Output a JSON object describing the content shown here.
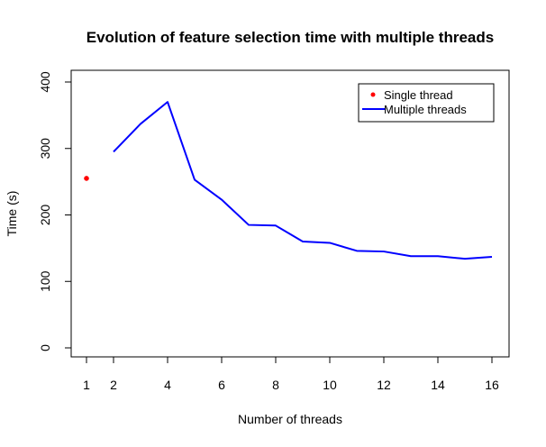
{
  "chart_data": {
    "type": "line",
    "title": "Evolution of feature selection time with multiple threads",
    "xlabel": "Number of threads",
    "ylabel": "Time (s)",
    "xlim": [
      1,
      16
    ],
    "ylim": [
      0,
      400
    ],
    "x_ticks": [
      1,
      2,
      4,
      6,
      8,
      10,
      12,
      14,
      16
    ],
    "y_ticks": [
      0,
      100,
      200,
      300,
      400
    ],
    "grid": false,
    "legend_position": "top-right",
    "series": [
      {
        "name": "Single thread",
        "kind": "points",
        "color": "#ff0000",
        "x": [
          1
        ],
        "y": [
          255
        ]
      },
      {
        "name": "Multiple threads",
        "kind": "line",
        "color": "#0000ff",
        "x": [
          2,
          3,
          4,
          5,
          6,
          7,
          8,
          9,
          10,
          11,
          12,
          13,
          14,
          15,
          16
        ],
        "y": [
          295,
          337,
          370,
          253,
          223,
          185,
          184,
          160,
          158,
          146,
          145,
          138,
          138,
          134,
          137
        ]
      }
    ]
  }
}
